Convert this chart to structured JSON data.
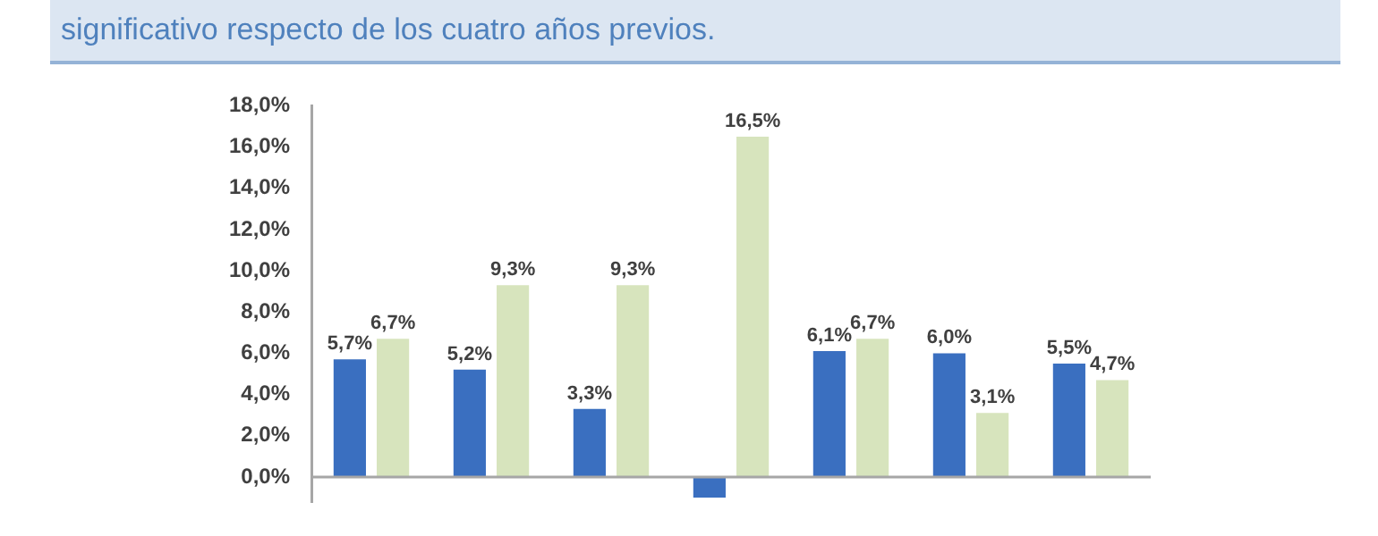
{
  "chart_data": {
    "type": "bar",
    "title": "significativo respecto de los cuatro años previos.",
    "categories": [
      null,
      null,
      null,
      null,
      null,
      null,
      null
    ],
    "series": [
      {
        "color": "#3a6fc0",
        "values": [
          5.7,
          5.2,
          3.3,
          -1.0,
          6.1,
          6.0,
          5.5
        ],
        "value_labels": [
          "5,7%",
          "5,2%",
          "3,3%",
          null,
          "6,1%",
          "6,0%",
          "5,5%"
        ]
      },
      {
        "color": "#d7e4bd",
        "values": [
          6.7,
          9.3,
          9.3,
          16.5,
          6.7,
          3.1,
          4.7
        ],
        "value_labels": [
          "6,7%",
          "9,3%",
          "9,3%",
          "16,5%",
          "6,7%",
          "3,1%",
          "4,7%"
        ]
      }
    ],
    "ylim": [
      -1.2,
      18
    ],
    "yticks": [
      {
        "value": 0,
        "label": "0,0%"
      },
      {
        "value": 2,
        "label": "2,0%"
      },
      {
        "value": 4,
        "label": "4,0%"
      },
      {
        "value": 6,
        "label": "6,0%"
      },
      {
        "value": 8,
        "label": "8,0%"
      },
      {
        "value": 10,
        "label": "10,0%"
      },
      {
        "value": 12,
        "label": "12,0%"
      },
      {
        "value": 14,
        "label": "14,0%"
      },
      {
        "value": 16,
        "label": "16,0%"
      },
      {
        "value": 18,
        "label": "18,0%"
      }
    ],
    "ref_lines": [
      {
        "axis": "y",
        "value": 0,
        "color": "#a6a6a6"
      }
    ],
    "legend": false
  }
}
